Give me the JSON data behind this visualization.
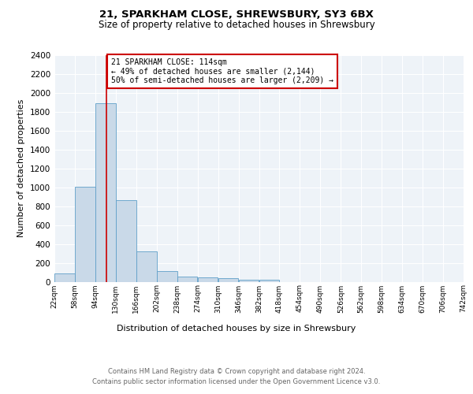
{
  "title1": "21, SPARKHAM CLOSE, SHREWSBURY, SY3 6BX",
  "title2": "Size of property relative to detached houses in Shrewsbury",
  "xlabel": "Distribution of detached houses by size in Shrewsbury",
  "ylabel": "Number of detached properties",
  "bar_edges": [
    22,
    58,
    94,
    130,
    166,
    202,
    238,
    274,
    310,
    346,
    382,
    418,
    454,
    490,
    526,
    562,
    598,
    634,
    670,
    706,
    742
  ],
  "bar_heights": [
    90,
    1010,
    1890,
    860,
    320,
    115,
    55,
    47,
    35,
    22,
    22,
    0,
    0,
    0,
    0,
    0,
    0,
    0,
    0,
    0
  ],
  "bar_color": "#c9d9e8",
  "bar_edge_color": "#5f9fc8",
  "property_line_x": 114,
  "property_line_color": "#cc0000",
  "annotation_text": "21 SPARKHAM CLOSE: 114sqm\n← 49% of detached houses are smaller (2,144)\n50% of semi-detached houses are larger (2,209) →",
  "annotation_box_color": "#ffffff",
  "annotation_box_edge": "#cc0000",
  "ylim": [
    0,
    2400
  ],
  "yticks": [
    0,
    200,
    400,
    600,
    800,
    1000,
    1200,
    1400,
    1600,
    1800,
    2000,
    2200,
    2400
  ],
  "xtick_labels": [
    "22sqm",
    "58sqm",
    "94sqm",
    "130sqm",
    "166sqm",
    "202sqm",
    "238sqm",
    "274sqm",
    "310sqm",
    "346sqm",
    "382sqm",
    "418sqm",
    "454sqm",
    "490sqm",
    "526sqm",
    "562sqm",
    "598sqm",
    "634sqm",
    "670sqm",
    "706sqm",
    "742sqm"
  ],
  "footer_text": "Contains HM Land Registry data © Crown copyright and database right 2024.\nContains public sector information licensed under the Open Government Licence v3.0.",
  "background_color": "#ffffff",
  "plot_bg_color": "#eef3f8"
}
